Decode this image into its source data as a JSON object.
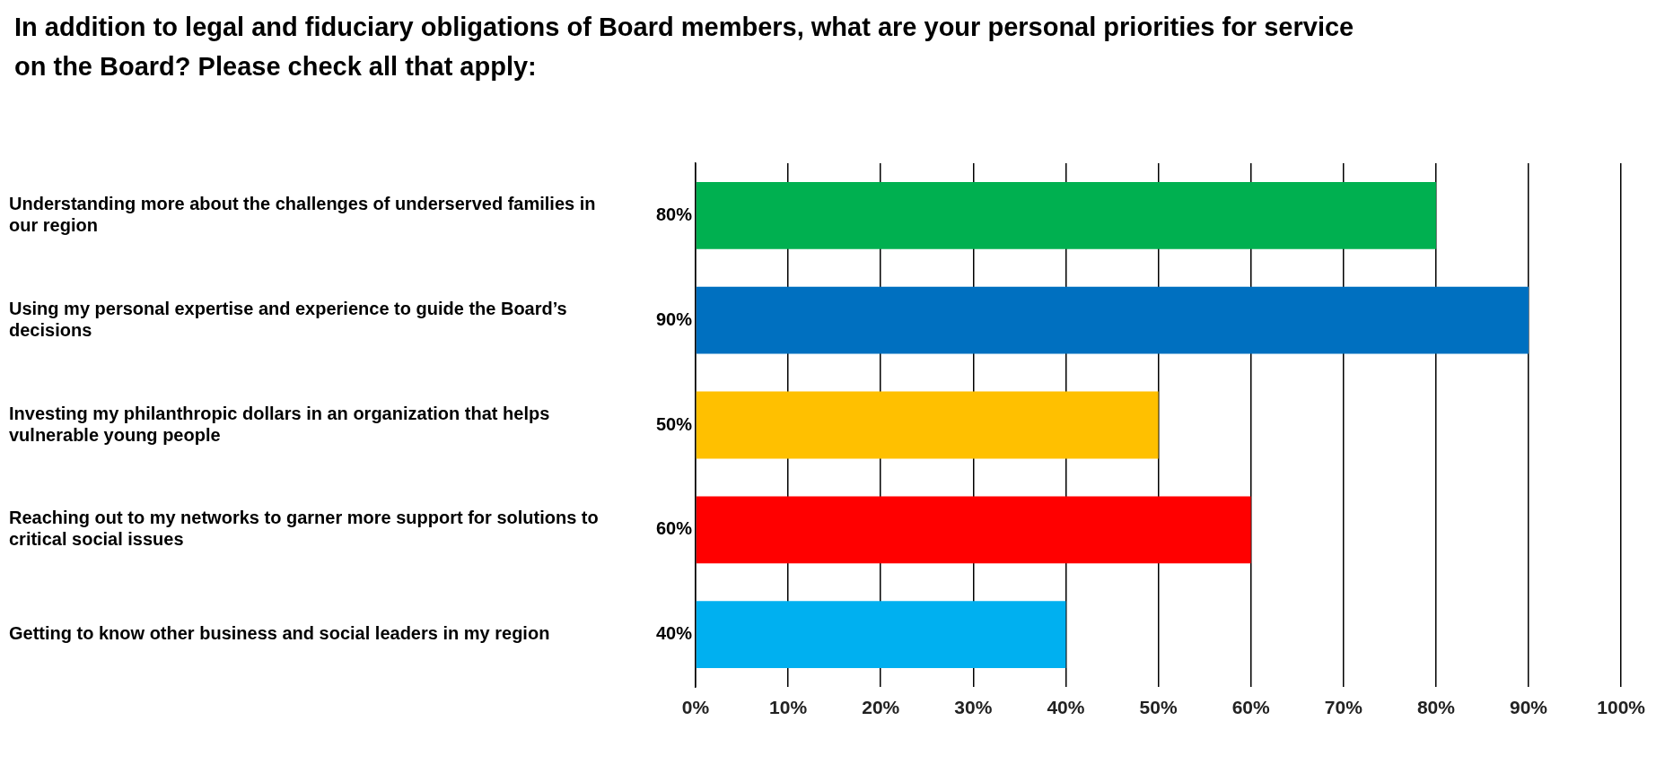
{
  "chart_data": {
    "type": "bar",
    "orientation": "horizontal",
    "title": "In addition to legal and fiduciary obligations of Board members, what are your personal priorities for service on the Board? Please check all that apply:",
    "categories": [
      "Understanding more about the challenges of underserved families in our region",
      "Using my personal expertise and experience to guide the Board’s decisions",
      "Investing my philanthropic dollars in an organization that helps vulnerable young people",
      "Reaching out to my networks to garner more support for solutions to critical social issues",
      "Getting to know other business and social leaders in my region"
    ],
    "values": [
      80,
      90,
      50,
      60,
      40
    ],
    "value_labels": [
      "80%",
      "90%",
      "50%",
      "60%",
      "40%"
    ],
    "colors": [
      "#00b050",
      "#0070c0",
      "#ffc000",
      "#ff0000",
      "#00b0f0"
    ],
    "xlim": [
      0,
      100
    ],
    "xticks": [
      {
        "value": 0,
        "label": "0%"
      },
      {
        "value": 10,
        "label": "10%"
      },
      {
        "value": 20,
        "label": "20%"
      },
      {
        "value": 30,
        "label": "30%"
      },
      {
        "value": 40,
        "label": "40%"
      },
      {
        "value": 50,
        "label": "50%"
      },
      {
        "value": 60,
        "label": "60%"
      },
      {
        "value": 70,
        "label": "70%"
      },
      {
        "value": 80,
        "label": "80%"
      },
      {
        "value": 90,
        "label": "90%"
      },
      {
        "value": 100,
        "label": "100%"
      }
    ],
    "grid": "x",
    "legend": false
  }
}
